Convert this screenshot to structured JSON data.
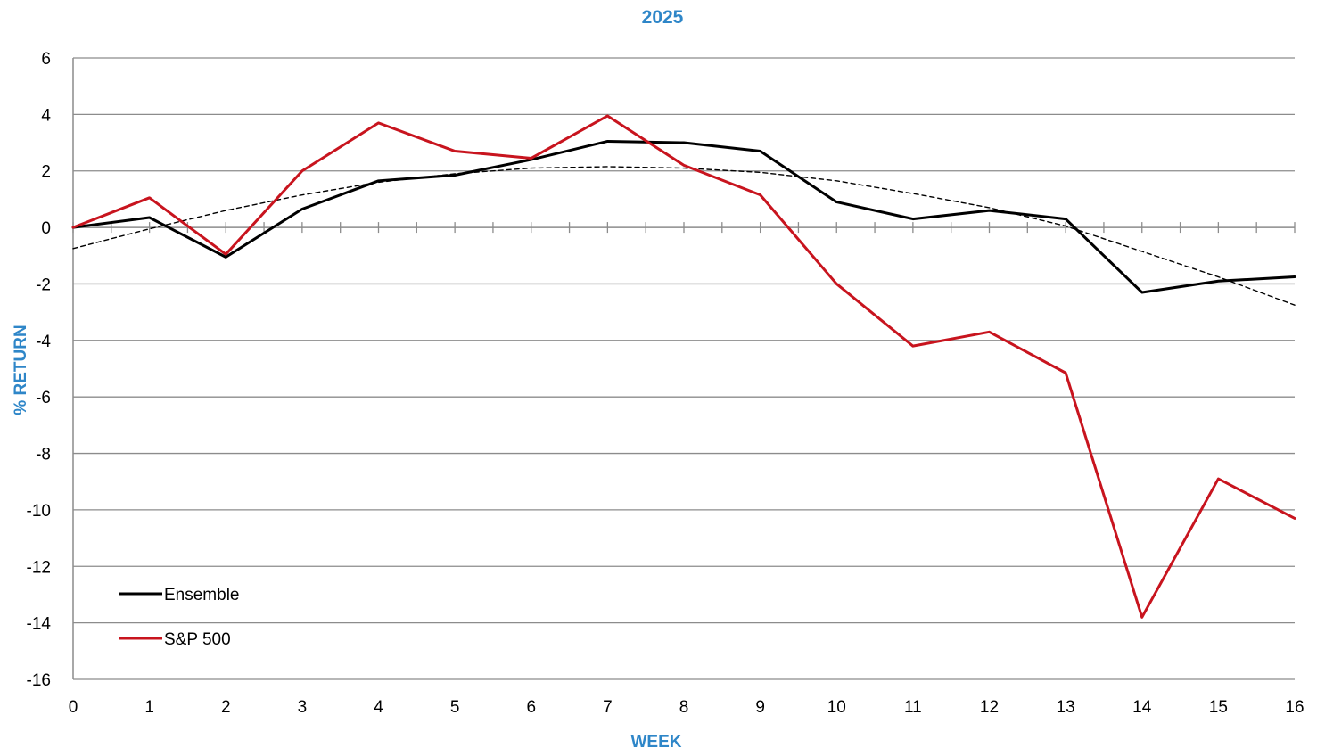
{
  "chart_data": {
    "type": "line",
    "title": "2025",
    "xlabel": "WEEK",
    "ylabel": "% RETURN",
    "x": [
      0,
      1,
      2,
      3,
      4,
      5,
      6,
      7,
      8,
      9,
      10,
      11,
      12,
      13,
      14,
      15,
      16
    ],
    "xlim": [
      0,
      16
    ],
    "ylim": [
      -16,
      6
    ],
    "yticks": [
      6,
      4,
      2,
      0,
      -2,
      -4,
      -6,
      -8,
      -10,
      -12,
      -14,
      -16
    ],
    "grid": true,
    "legend_position": "bottom-left",
    "series": [
      {
        "name": "Ensemble",
        "color": "#000000",
        "style": "solid",
        "values": [
          0,
          0.35,
          -1.05,
          0.65,
          1.65,
          1.85,
          2.4,
          3.05,
          3.0,
          2.7,
          0.9,
          0.3,
          0.6,
          0.3,
          -2.3,
          -1.9,
          -1.75
        ]
      },
      {
        "name": "S&P 500",
        "color": "#c8141e",
        "style": "solid",
        "values": [
          0,
          1.05,
          -0.95,
          2.0,
          3.7,
          2.7,
          2.45,
          3.95,
          2.2,
          1.15,
          -2.0,
          -4.2,
          -3.7,
          -5.15,
          -13.8,
          -8.9,
          -10.3
        ]
      },
      {
        "color": "#000000",
        "style": "dashed",
        "trendline": true,
        "values": [
          -0.75,
          -0.05,
          0.6,
          1.15,
          1.6,
          1.9,
          2.1,
          2.15,
          2.1,
          1.95,
          1.65,
          1.2,
          0.7,
          0.05,
          -0.85,
          -1.75,
          -2.75
        ]
      }
    ]
  }
}
